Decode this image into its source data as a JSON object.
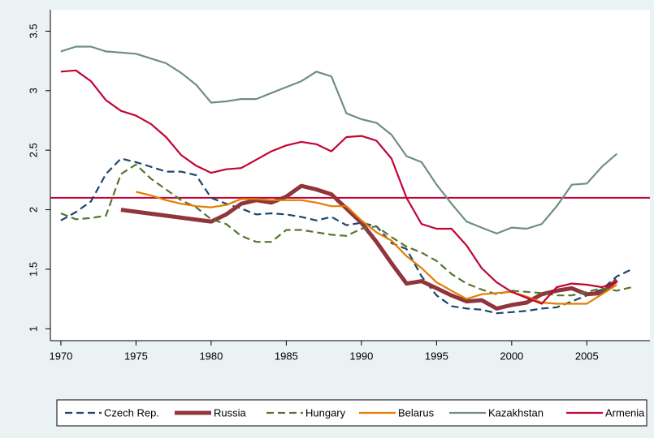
{
  "chart_data": {
    "type": "line",
    "xlim": [
      1969.3,
      2009.2
    ],
    "ylim": [
      0.9,
      3.68
    ],
    "xticks": [
      1970,
      1975,
      1980,
      1985,
      1990,
      1995,
      2000,
      2005
    ],
    "yticks": [
      1,
      1.5,
      2,
      2.5,
      3,
      3.5
    ],
    "hline": 2.1,
    "hline_color": "#c10534",
    "series": [
      {
        "name": "Czech Rep.",
        "color": "#1a476f",
        "dashed": true,
        "x": [
          1970,
          1971,
          1972,
          1973,
          1974,
          1975,
          1976,
          1977,
          1978,
          1979,
          1980,
          1981,
          1982,
          1983,
          1984,
          1985,
          1986,
          1987,
          1988,
          1989,
          1990,
          1991,
          1992,
          1993,
          1994,
          1995,
          1996,
          1997,
          1998,
          1999,
          2000,
          2001,
          2002,
          2003,
          2004,
          2005,
          2006,
          2007,
          2008
        ],
        "values": [
          1.91,
          1.98,
          2.07,
          2.3,
          2.43,
          2.4,
          2.36,
          2.32,
          2.32,
          2.29,
          2.1,
          2.05,
          2.01,
          1.96,
          1.97,
          1.96,
          1.94,
          1.91,
          1.94,
          1.87,
          1.89,
          1.86,
          1.72,
          1.67,
          1.44,
          1.28,
          1.19,
          1.17,
          1.16,
          1.13,
          1.14,
          1.15,
          1.17,
          1.18,
          1.23,
          1.28,
          1.33,
          1.44,
          1.5
        ]
      },
      {
        "name": "Russia",
        "color": "#90353b",
        "thick": true,
        "x": [
          1974,
          1980,
          1981,
          1982,
          1983,
          1984,
          1985,
          1986,
          1987,
          1988,
          1989,
          1990,
          1991,
          1992,
          1993,
          1994,
          1995,
          1996,
          1997,
          1998,
          1999,
          2000,
          2001,
          2002,
          2003,
          2004,
          2005,
          2006,
          2007
        ],
        "values": [
          2.0,
          1.9,
          1.96,
          2.05,
          2.08,
          2.06,
          2.11,
          2.2,
          2.17,
          2.13,
          2.01,
          1.89,
          1.73,
          1.55,
          1.38,
          1.4,
          1.34,
          1.28,
          1.23,
          1.24,
          1.17,
          1.2,
          1.22,
          1.29,
          1.32,
          1.34,
          1.29,
          1.3,
          1.41
        ]
      },
      {
        "name": "Hungary",
        "color": "#55752f",
        "dashed": true,
        "x": [
          1970,
          1971,
          1972,
          1973,
          1974,
          1975,
          1976,
          1977,
          1978,
          1979,
          1980,
          1981,
          1982,
          1983,
          1984,
          1985,
          1986,
          1987,
          1988,
          1989,
          1990,
          1991,
          1992,
          1993,
          1994,
          1995,
          1996,
          1997,
          1998,
          1999,
          2000,
          2001,
          2002,
          2003,
          2004,
          2005,
          2006,
          2007,
          2008
        ],
        "values": [
          1.97,
          1.92,
          1.93,
          1.95,
          2.3,
          2.38,
          2.26,
          2.17,
          2.08,
          2.02,
          1.92,
          1.88,
          1.78,
          1.73,
          1.73,
          1.83,
          1.83,
          1.81,
          1.79,
          1.78,
          1.84,
          1.86,
          1.77,
          1.69,
          1.64,
          1.57,
          1.46,
          1.38,
          1.33,
          1.29,
          1.32,
          1.31,
          1.3,
          1.28,
          1.28,
          1.31,
          1.34,
          1.32,
          1.35
        ]
      },
      {
        "name": "Belarus",
        "color": "#e37e00",
        "x": [
          1975,
          1976,
          1977,
          1978,
          1979,
          1980,
          1981,
          1982,
          1983,
          1984,
          1985,
          1986,
          1987,
          1988,
          1989,
          1990,
          1991,
          1992,
          1993,
          1994,
          1995,
          1996,
          1997,
          1998,
          1999,
          2000,
          2001,
          2002,
          2003,
          2004,
          2005,
          2006,
          2007
        ],
        "values": [
          2.15,
          2.12,
          2.08,
          2.05,
          2.03,
          2.02,
          2.04,
          2.09,
          2.09,
          2.08,
          2.08,
          2.08,
          2.06,
          2.03,
          2.03,
          1.91,
          1.81,
          1.74,
          1.61,
          1.51,
          1.39,
          1.32,
          1.25,
          1.29,
          1.3,
          1.31,
          1.27,
          1.22,
          1.21,
          1.21,
          1.21,
          1.29,
          1.37
        ]
      },
      {
        "name": "Kazakhstan",
        "color": "#6e8e84",
        "x": [
          1970,
          1971,
          1972,
          1973,
          1974,
          1975,
          1976,
          1977,
          1978,
          1979,
          1980,
          1981,
          1982,
          1983,
          1984,
          1985,
          1986,
          1987,
          1988,
          1989,
          1990,
          1991,
          1992,
          1993,
          1994,
          1995,
          1996,
          1997,
          1998,
          1999,
          2000,
          2001,
          2002,
          2003,
          2004,
          2005,
          2006,
          2007
        ],
        "values": [
          3.33,
          3.37,
          3.37,
          3.33,
          3.32,
          3.31,
          3.27,
          3.23,
          3.15,
          3.05,
          2.9,
          2.91,
          2.93,
          2.93,
          2.98,
          3.03,
          3.08,
          3.16,
          3.12,
          2.81,
          2.76,
          2.73,
          2.63,
          2.45,
          2.4,
          2.21,
          2.05,
          1.9,
          1.85,
          1.8,
          1.85,
          1.84,
          1.88,
          2.03,
          2.21,
          2.22,
          2.36,
          2.47
        ]
      },
      {
        "name": "Armenia",
        "color": "#c10534",
        "x": [
          1970,
          1971,
          1972,
          1973,
          1974,
          1975,
          1976,
          1977,
          1978,
          1979,
          1980,
          1981,
          1982,
          1983,
          1984,
          1985,
          1986,
          1987,
          1988,
          1989,
          1990,
          1991,
          1992,
          1993,
          1994,
          1995,
          1996,
          1997,
          1998,
          1999,
          2000,
          2001,
          2002,
          2003,
          2004,
          2005,
          2006,
          2007
        ],
        "values": [
          3.16,
          3.17,
          3.08,
          2.92,
          2.83,
          2.79,
          2.72,
          2.61,
          2.46,
          2.37,
          2.31,
          2.34,
          2.35,
          2.42,
          2.49,
          2.54,
          2.57,
          2.55,
          2.49,
          2.61,
          2.62,
          2.58,
          2.43,
          2.1,
          1.88,
          1.84,
          1.84,
          1.7,
          1.51,
          1.39,
          1.31,
          1.26,
          1.21,
          1.35,
          1.38,
          1.37,
          1.35,
          1.39
        ]
      }
    ]
  }
}
